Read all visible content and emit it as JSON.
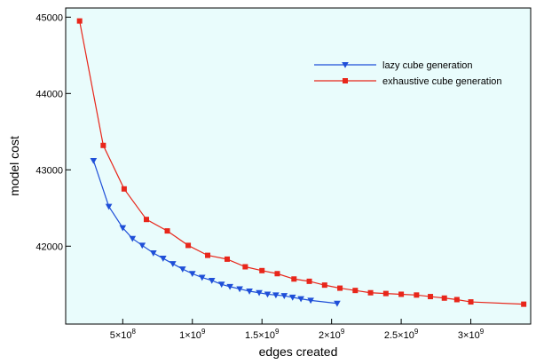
{
  "chart_data": {
    "type": "line",
    "title": "",
    "xlabel": "edges created",
    "ylabel": "model cost",
    "xlim": [
      90000000,
      3430000000
    ],
    "ylim": [
      40980,
      45120
    ],
    "x_ticks": [
      {
        "value": 500000000,
        "mantissa": "5",
        "exp": "8"
      },
      {
        "value": 1000000000,
        "mantissa": "1",
        "exp": "9"
      },
      {
        "value": 1500000000,
        "mantissa": "1.5",
        "exp": "9"
      },
      {
        "value": 2000000000,
        "mantissa": "2",
        "exp": "9"
      },
      {
        "value": 2500000000,
        "mantissa": "2.5",
        "exp": "9"
      },
      {
        "value": 3000000000,
        "mantissa": "3",
        "exp": "9"
      }
    ],
    "y_ticks": [
      {
        "value": 42000,
        "label": "42000"
      },
      {
        "value": 43000,
        "label": "43000"
      },
      {
        "value": 44000,
        "label": "44000"
      },
      {
        "value": 45000,
        "label": "45000"
      }
    ],
    "grid": false,
    "legend_position": "top-right",
    "background": "#e9fcfc",
    "series": [
      {
        "name": "lazy cube generation",
        "color": "#1f4fd8",
        "marker": "triangle-down",
        "x": [
          290000000,
          400000000,
          500000000,
          570000000,
          640000000,
          720000000,
          790000000,
          860000000,
          930000000,
          1000000000,
          1070000000,
          1140000000,
          1210000000,
          1270000000,
          1340000000,
          1410000000,
          1480000000,
          1540000000,
          1600000000,
          1660000000,
          1720000000,
          1780000000,
          1850000000,
          2040000000
        ],
        "y": [
          43120,
          42520,
          42240,
          42100,
          42010,
          41910,
          41840,
          41770,
          41700,
          41640,
          41590,
          41550,
          41500,
          41470,
          41440,
          41410,
          41390,
          41370,
          41360,
          41350,
          41330,
          41310,
          41290,
          41250
        ]
      },
      {
        "name": "exhaustive cube generation",
        "color": "#e8261a",
        "marker": "square",
        "x": [
          190000000,
          360000000,
          510000000,
          670000000,
          820000000,
          970000000,
          1110000000,
          1250000000,
          1380000000,
          1500000000,
          1610000000,
          1730000000,
          1840000000,
          1950000000,
          2060000000,
          2170000000,
          2280000000,
          2390000000,
          2500000000,
          2610000000,
          2710000000,
          2810000000,
          2900000000,
          3000000000,
          3380000000
        ],
        "y": [
          44950,
          43320,
          42750,
          42350,
          42200,
          42010,
          41880,
          41830,
          41730,
          41680,
          41640,
          41570,
          41540,
          41490,
          41450,
          41420,
          41390,
          41380,
          41370,
          41360,
          41340,
          41320,
          41300,
          41270,
          41240
        ]
      }
    ]
  }
}
